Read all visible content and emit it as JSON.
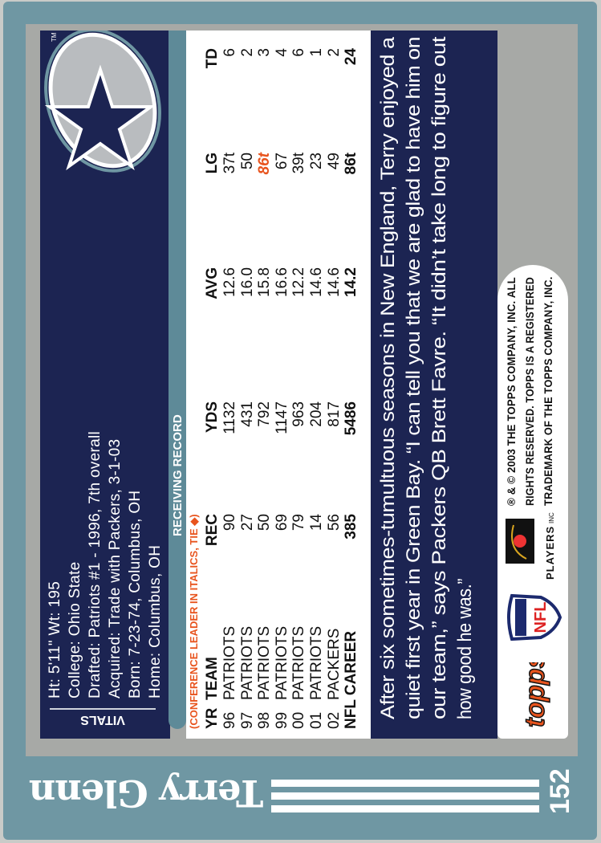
{
  "player": {
    "name": "Terry Glenn",
    "card_number": "152"
  },
  "colors": {
    "background": "#6f97a3",
    "panel": "#1c2452",
    "accent": "#e8541e",
    "silver": "#a7a9a6"
  },
  "vitals": {
    "label": "VITALS",
    "lines": [
      "Ht: 5'11\"      Wt: 195",
      "College: Ohio State",
      "Drafted: Patriots #1 - 1996, 7th overall",
      "Acquired: Trade with Packers, 3-1-03",
      "Born: 7-23-74, Columbus, OH",
      "Home: Columbus, OH"
    ]
  },
  "record": {
    "title": "RECEIVING RECORD",
    "note": "(CONFERENCE LEADER IN ITALICS, TIE ◆)",
    "columns": [
      "YR",
      "TEAM",
      "REC",
      "YDS",
      "AVG",
      "LG",
      "TD"
    ],
    "rows": [
      [
        "96",
        "PATRIOTS",
        "90",
        "1132",
        "12.6",
        "37t",
        "6"
      ],
      [
        "97",
        "PATRIOTS",
        "27",
        "431",
        "16.0",
        "50",
        "2"
      ],
      [
        "98",
        "PATRIOTS",
        "50",
        "792",
        "15.8",
        "86t",
        "3"
      ],
      [
        "99",
        "PATRIOTS",
        "69",
        "1147",
        "16.6",
        "67",
        "4"
      ],
      [
        "00",
        "PATRIOTS",
        "79",
        "963",
        "12.2",
        "39t",
        "6"
      ],
      [
        "01",
        "PATRIOTS",
        "14",
        "204",
        "14.6",
        "23",
        "1"
      ],
      [
        "02",
        "PACKERS",
        "56",
        "817",
        "14.6",
        "49",
        "2"
      ]
    ],
    "career": [
      "NFL CAREER",
      "385",
      "5486",
      "14.2",
      "86t",
      "24"
    ],
    "highlighted_cell": "98 LG 86t (conference leader)"
  },
  "bio": [
    "After six sometimes-tumultuous seasons in New England, Terry enjoyed a",
    "quiet first year in Green Bay. “I can tell you that we are glad to have him on",
    "our team,” says Packers QB Brett Favre. “It didn’t take long to figure out",
    "how good he was.”"
  ],
  "footer": {
    "logos": [
      "topps",
      "NFL",
      "PLAYERS INC"
    ],
    "copyright": [
      "® & © 2003 THE TOPPS COMPANY, INC. ALL",
      "RIGHTS RESERVED. TOPPS IS A REGISTERED",
      "TRADEMARK OF THE TOPPS COMPANY, INC."
    ]
  }
}
